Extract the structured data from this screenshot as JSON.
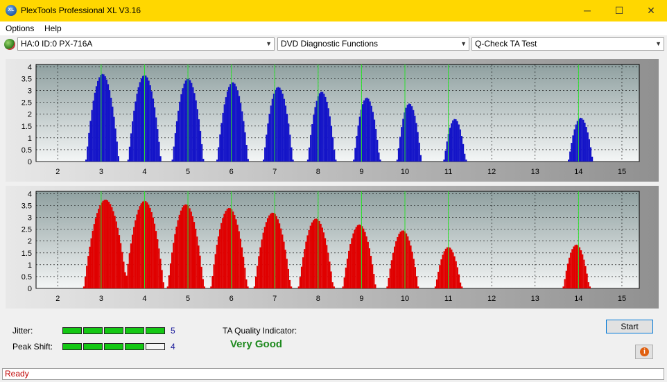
{
  "window": {
    "title": "PlexTools Professional XL V3.16",
    "icon_text": "XL",
    "minimize": "─",
    "maximize": "☐",
    "close": "✕"
  },
  "menu": {
    "items": [
      "Options",
      "Help"
    ]
  },
  "toolbar": {
    "drive": "HA:0 ID:0  PX-716A",
    "function": "DVD Diagnostic Functions",
    "test": "Q-Check TA Test"
  },
  "chart_data": [
    {
      "type": "bar",
      "series": [
        {
          "name": "",
          "color": "#1414c8"
        }
      ],
      "x_ticks": [
        2,
        3,
        4,
        5,
        6,
        7,
        8,
        9,
        10,
        11,
        12,
        13,
        14,
        15
      ],
      "y_ticks": [
        "0",
        "0.5",
        "1",
        "1.5",
        "2",
        "2.5",
        "3",
        "3.5",
        "4"
      ],
      "xlim": [
        1.5,
        15.4
      ],
      "ylim": [
        0,
        4.1
      ],
      "green_lines": [
        3,
        4,
        5,
        6,
        7,
        8,
        9,
        10,
        11,
        14
      ],
      "peaks": [
        {
          "center": 3.03,
          "height": 3.7,
          "half_width": 0.38
        },
        {
          "center": 4.0,
          "height": 3.65,
          "half_width": 0.38
        },
        {
          "center": 5.0,
          "height": 3.5,
          "half_width": 0.36
        },
        {
          "center": 6.03,
          "height": 3.35,
          "half_width": 0.36
        },
        {
          "center": 7.08,
          "height": 3.15,
          "half_width": 0.34
        },
        {
          "center": 8.08,
          "height": 2.95,
          "half_width": 0.32
        },
        {
          "center": 9.12,
          "height": 2.7,
          "half_width": 0.3
        },
        {
          "center": 10.1,
          "height": 2.45,
          "half_width": 0.28
        },
        {
          "center": 11.15,
          "height": 1.8,
          "half_width": 0.25
        },
        {
          "center": 14.05,
          "height": 1.85,
          "half_width": 0.28
        }
      ]
    },
    {
      "type": "bar",
      "series": [
        {
          "name": "",
          "color": "#e00000"
        }
      ],
      "x_ticks": [
        2,
        3,
        4,
        5,
        6,
        7,
        8,
        9,
        10,
        11,
        12,
        13,
        14,
        15
      ],
      "y_ticks": [
        "0",
        "0.5",
        "1",
        "1.5",
        "2",
        "2.5",
        "3",
        "3.5",
        "4"
      ],
      "xlim": [
        1.5,
        15.4
      ],
      "ylim": [
        0,
        4.1
      ],
      "green_lines": [
        3,
        4,
        5,
        6,
        7,
        8,
        9,
        10,
        11,
        14
      ],
      "peaks": [
        {
          "center": 3.1,
          "height": 3.75,
          "half_width": 0.5
        },
        {
          "center": 4.0,
          "height": 3.7,
          "half_width": 0.45
        },
        {
          "center": 4.95,
          "height": 3.55,
          "half_width": 0.42
        },
        {
          "center": 5.95,
          "height": 3.4,
          "half_width": 0.42
        },
        {
          "center": 6.95,
          "height": 3.2,
          "half_width": 0.42
        },
        {
          "center": 7.95,
          "height": 2.95,
          "half_width": 0.4
        },
        {
          "center": 8.95,
          "height": 2.7,
          "half_width": 0.38
        },
        {
          "center": 9.95,
          "height": 2.45,
          "half_width": 0.36
        },
        {
          "center": 11.0,
          "height": 1.75,
          "half_width": 0.3
        },
        {
          "center": 13.95,
          "height": 1.85,
          "half_width": 0.3
        }
      ]
    }
  ],
  "results": {
    "jitter_label": "Jitter:",
    "jitter_value": "5",
    "jitter_level": 5,
    "peak_label": "Peak Shift:",
    "peak_value": "4",
    "peak_level": 4,
    "ta_label": "TA Quality Indicator:",
    "ta_value": "Very Good",
    "start_label": "Start",
    "info_icon_text": "i"
  },
  "status": {
    "text": "Ready"
  }
}
